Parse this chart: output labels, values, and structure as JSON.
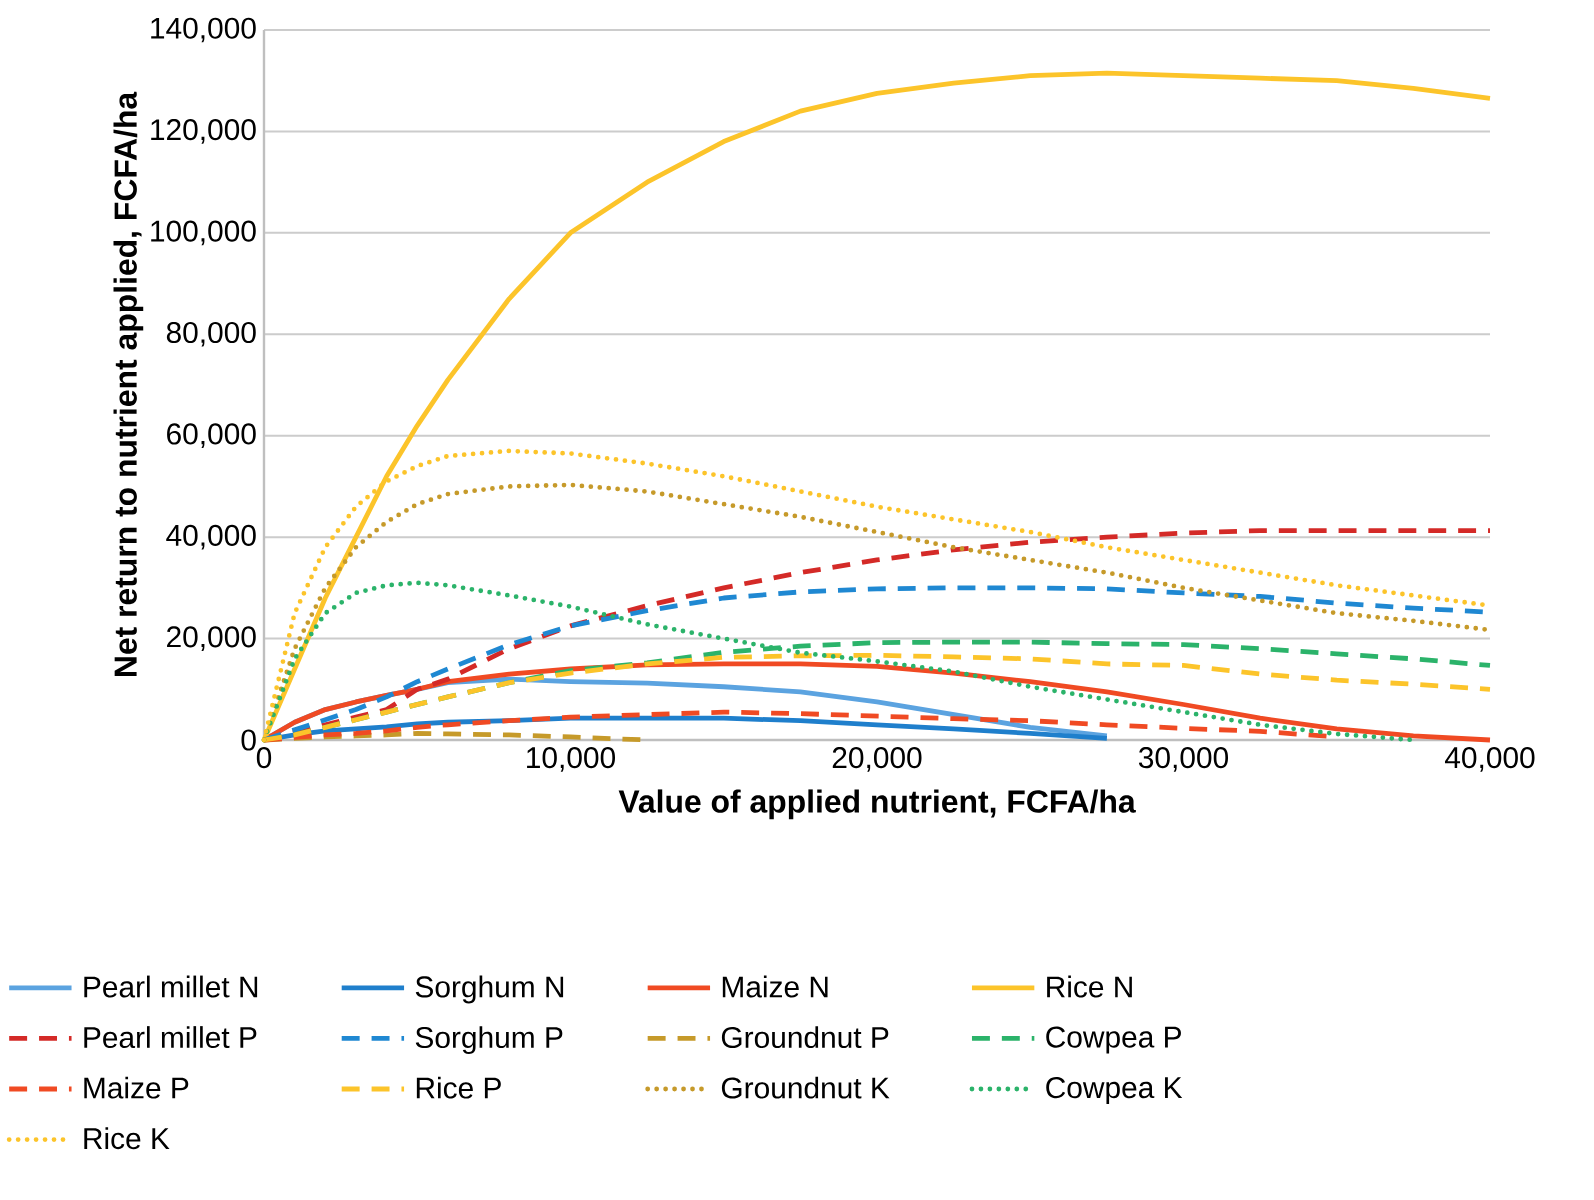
{
  "chart_data": {
    "type": "line",
    "xlabel": "Value of applied nutrient, FCFA/ha",
    "ylabel": "Net return to nutrient applied, FCFA/ha",
    "x": [
      0,
      1000,
      2000,
      3000,
      4000,
      5000,
      6000,
      8000,
      10000,
      12500,
      15000,
      17500,
      20000,
      22500,
      25000,
      27500,
      30000,
      32500,
      35000,
      37500,
      40000
    ],
    "xlim": [
      0,
      40000
    ],
    "ylim": [
      0,
      140000
    ],
    "xticks": [
      0,
      {
        "value": 10000,
        "label": "10,000"
      },
      {
        "value": 20000,
        "label": "20,000"
      },
      {
        "value": 30000,
        "label": "30,000"
      },
      {
        "value": 40000,
        "label": "40,000"
      }
    ],
    "yticks": [
      0,
      {
        "value": 20000,
        "label": "20,000"
      },
      {
        "value": 40000,
        "label": "40,000"
      },
      {
        "value": 60000,
        "label": "60,000"
      },
      {
        "value": 80000,
        "label": "80,000"
      },
      {
        "value": 100000,
        "label": "100,000"
      },
      {
        "value": 120000,
        "label": "120,000"
      },
      {
        "value": 140000,
        "label": "140,000"
      }
    ],
    "grid": "y",
    "legend": "bottom",
    "series": [
      {
        "name": "Pearl millet N",
        "color": "#5ba3e0",
        "line_style": "solid",
        "values": [
          0,
          3500,
          6000,
          7500,
          8800,
          10000,
          11300,
          12000,
          11500,
          11200,
          10500,
          9500,
          7500,
          5000,
          2500,
          800,
          null,
          null,
          null,
          null,
          null
        ]
      },
      {
        "name": "Sorghum N",
        "color": "#1f7fcc",
        "line_style": "solid",
        "values": [
          0,
          1000,
          1800,
          2200,
          2600,
          3200,
          3500,
          3800,
          4300,
          4300,
          4300,
          3800,
          3000,
          2200,
          1300,
          300,
          null,
          null,
          null,
          null,
          null
        ]
      },
      {
        "name": "Maize N",
        "color": "#f04a23",
        "line_style": "solid",
        "values": [
          0,
          3500,
          6000,
          7500,
          8800,
          10000,
          11500,
          13000,
          14000,
          14800,
          15000,
          15000,
          14500,
          13200,
          11500,
          9500,
          7000,
          4300,
          2200,
          800,
          0
        ]
      },
      {
        "name": "Rice N",
        "color": "#fcc42a",
        "line_style": "solid",
        "values": [
          0,
          14000,
          28000,
          40000,
          52000,
          62000,
          71000,
          87000,
          100000,
          110000,
          118000,
          124000,
          127500,
          129500,
          131000,
          131500,
          131000,
          130500,
          130000,
          128500,
          126500
        ]
      },
      {
        "name": "Pearl millet P",
        "color": "#d42a27",
        "line_style": "dashed",
        "values": [
          0,
          1500,
          3000,
          4500,
          6000,
          10000,
          12000,
          18000,
          22500,
          26500,
          30000,
          33000,
          35500,
          37500,
          39000,
          40000,
          40800,
          41300,
          41300,
          41300,
          41300
        ]
      },
      {
        "name": "Sorghum P",
        "color": "#1f88d2",
        "line_style": "dashed",
        "values": [
          0,
          2000,
          4000,
          6000,
          8500,
          11500,
          14000,
          18800,
          22500,
          25500,
          28000,
          29200,
          29800,
          30000,
          30000,
          29800,
          29000,
          28300,
          27000,
          26000,
          25200
        ]
      },
      {
        "name": "Groundnut P",
        "color": "#c69a2a",
        "line_style": "dashed",
        "values": [
          0,
          300,
          600,
          800,
          1000,
          1300,
          1200,
          1000,
          600,
          0,
          null,
          null,
          null,
          null,
          null,
          null,
          null,
          null,
          null,
          null,
          null
        ]
      },
      {
        "name": "Cowpea P",
        "color": "#2bb36a",
        "line_style": "dashed",
        "values": [
          0,
          1000,
          2500,
          4000,
          5500,
          7000,
          8500,
          11300,
          13700,
          15200,
          17300,
          18500,
          19200,
          19300,
          19300,
          19000,
          18800,
          18000,
          17000,
          16000,
          14700
        ]
      },
      {
        "name": "Maize P",
        "color": "#f04a23",
        "line_style": "dashed",
        "values": [
          0,
          500,
          1000,
          1300,
          1800,
          2500,
          3000,
          3800,
          4500,
          5000,
          5500,
          5200,
          4700,
          4200,
          3800,
          3000,
          2300,
          1700,
          600,
          null,
          null
        ]
      },
      {
        "name": "Rice P",
        "color": "#fcc42a",
        "line_style": "dashed",
        "values": [
          0,
          1000,
          2500,
          4000,
          5500,
          7000,
          8500,
          11300,
          13200,
          15000,
          16300,
          16600,
          16700,
          16400,
          16000,
          15000,
          14700,
          13000,
          11800,
          11000,
          10000
        ]
      },
      {
        "name": "Groundnut K",
        "color": "#c69a2a",
        "line_style": "dotted",
        "values": [
          0,
          18000,
          30000,
          38000,
          43000,
          46500,
          48500,
          50000,
          50300,
          49000,
          46500,
          44000,
          41000,
          38000,
          35500,
          33000,
          30000,
          27500,
          25000,
          23500,
          21700
        ]
      },
      {
        "name": "Cowpea K",
        "color": "#2bb36a",
        "line_style": "dotted",
        "values": [
          0,
          16000,
          25000,
          29000,
          30500,
          31000,
          30500,
          28500,
          26300,
          22800,
          20000,
          17200,
          15500,
          13500,
          10500,
          8000,
          5500,
          3000,
          1200,
          0,
          null
        ]
      },
      {
        "name": "Rice K",
        "color": "#fcc42a",
        "line_style": "dotted",
        "values": [
          0,
          25000,
          38000,
          46000,
          51000,
          54000,
          56000,
          57000,
          56500,
          54500,
          52000,
          49000,
          46000,
          43500,
          41000,
          38000,
          35500,
          33000,
          30500,
          28500,
          26500
        ]
      }
    ]
  }
}
